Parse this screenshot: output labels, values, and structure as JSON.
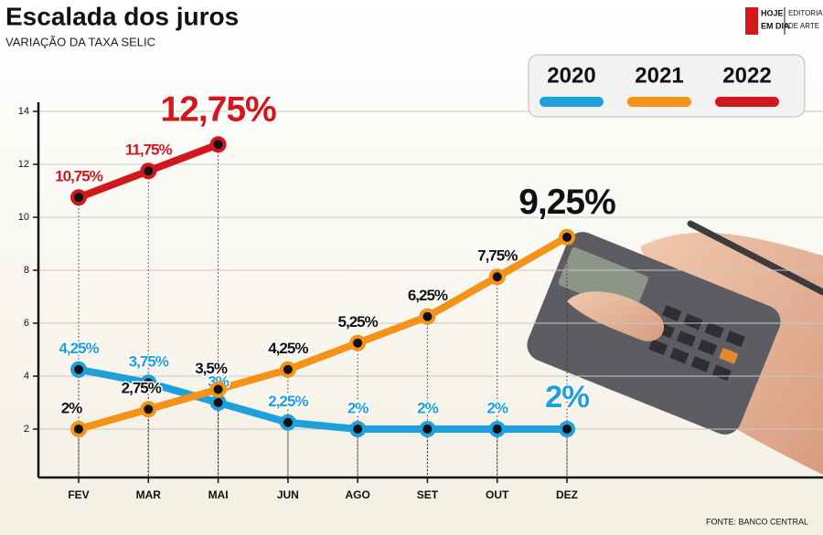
{
  "chart_data": {
    "type": "line",
    "title": "Escalada dos juros",
    "subtitle": "VARIAÇÃO DA TAXA SELIC",
    "source": "FONTE: BANCO CENTRAL",
    "logo": {
      "name": [
        "HOJE",
        "EM DIA"
      ],
      "department": [
        "EDITORIA",
        "DE ARTE"
      ]
    },
    "categories": [
      "FEV",
      "MAR",
      "MAI",
      "JUN",
      "AGO",
      "SET",
      "OUT",
      "DEZ"
    ],
    "ylim": [
      0,
      14
    ],
    "yticks": [
      2,
      4,
      6,
      8,
      10,
      12,
      14
    ],
    "grid": true,
    "legend": "top-right",
    "series": [
      {
        "name": "2020",
        "color": "#1ea0dc",
        "values": [
          4.25,
          3.75,
          3,
          2.25,
          2,
          2,
          2,
          2
        ],
        "value_labels": [
          "4,25%",
          "3,75%",
          "3%",
          "2,25%",
          "2%",
          "2%",
          "2%",
          "2%"
        ]
      },
      {
        "name": "2021",
        "color": "#f39419",
        "values": [
          2,
          2.75,
          3.5,
          4.25,
          5.25,
          6.25,
          7.75,
          9.25
        ],
        "value_labels": [
          "2%",
          "2,75%",
          "3,5%",
          "4,25%",
          "5,25%",
          "6,25%",
          "7,75%",
          "9,25%"
        ]
      },
      {
        "name": "2022",
        "color": "#d2171d",
        "values": [
          10.75,
          11.75,
          12.75,
          null,
          null,
          null,
          null,
          null
        ],
        "value_labels": [
          "10,75%",
          "11,75%",
          "12,75%",
          null,
          null,
          null,
          null,
          null
        ]
      }
    ]
  }
}
